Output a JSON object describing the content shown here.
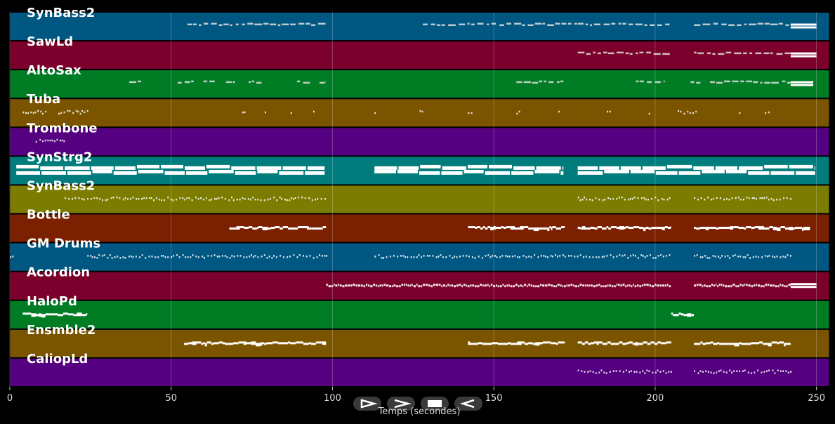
{
  "chart_data": {
    "type": "piano-roll",
    "xlabel": "Temps (secondes)",
    "xlim": [
      0,
      254
    ],
    "xticks": [
      0,
      50,
      100,
      150,
      200,
      250
    ],
    "grid": true,
    "tracks": [
      {
        "name": "SynBass2",
        "color": "#005782",
        "segments": [
          [
            55,
            98,
            "sparse"
          ],
          [
            128,
            205,
            "sparse"
          ],
          [
            212,
            242,
            "sparse"
          ],
          [
            242,
            250,
            "block"
          ]
        ]
      },
      {
        "name": "SawLd",
        "color": "#7b002c",
        "segments": [
          [
            176,
            205,
            "sparse"
          ],
          [
            212,
            242,
            "sparse"
          ],
          [
            242,
            250,
            "block"
          ]
        ]
      },
      {
        "name": "AltoSax",
        "color": "#007c24",
        "segments": [
          [
            37,
            41,
            "sparse"
          ],
          [
            52,
            57,
            "sparse"
          ],
          [
            60,
            64,
            "sparse"
          ],
          [
            67,
            70,
            "sparse"
          ],
          [
            74,
            78,
            "sparse"
          ],
          [
            89,
            93,
            "sparse"
          ],
          [
            96,
            98,
            "sparse"
          ],
          [
            157,
            172,
            "sparse"
          ],
          [
            194,
            203,
            "sparse"
          ],
          [
            211,
            214,
            "sparse"
          ],
          [
            217,
            242,
            "sparse"
          ],
          [
            242,
            249,
            "block"
          ]
        ]
      },
      {
        "name": "Tuba",
        "color": "#7b5400",
        "segments": [
          [
            4,
            11,
            "dots"
          ],
          [
            15,
            24,
            "dots"
          ],
          [
            72,
            73,
            "dots"
          ],
          [
            79,
            80,
            "dots"
          ],
          [
            87,
            88,
            "dots"
          ],
          [
            94,
            95,
            "dots"
          ],
          [
            113,
            114,
            "dots"
          ],
          [
            127,
            128,
            "dots"
          ],
          [
            142,
            143,
            "dots"
          ],
          [
            157,
            158,
            "dots"
          ],
          [
            170,
            171,
            "dots"
          ],
          [
            185,
            186,
            "dots"
          ],
          [
            198,
            199,
            "dots"
          ],
          [
            207,
            213,
            "dots"
          ],
          [
            226,
            227,
            "dots"
          ],
          [
            234,
            235,
            "dots"
          ]
        ]
      },
      {
        "name": "Trombone",
        "color": "#550080",
        "segments": [
          [
            8,
            17,
            "dots"
          ]
        ]
      },
      {
        "name": "SynStrg2",
        "color": "#007c7c",
        "segments": [
          [
            2,
            98,
            "big"
          ],
          [
            113,
            172,
            "big"
          ],
          [
            176,
            250,
            "big"
          ]
        ]
      },
      {
        "name": "SynBass2",
        "color": "#7b7c00",
        "segments": [
          [
            17,
            98,
            "dots"
          ],
          [
            176,
            205,
            "dots"
          ],
          [
            212,
            242,
            "dots"
          ]
        ]
      },
      {
        "name": "Bottle",
        "color": "#7b2000",
        "segments": [
          [
            68,
            98,
            "line"
          ],
          [
            142,
            172,
            "line"
          ],
          [
            176,
            205,
            "line"
          ],
          [
            212,
            248,
            "line"
          ]
        ]
      },
      {
        "name": "GM Drums",
        "color": "#005782",
        "segments": [
          [
            0,
            1,
            "dots"
          ],
          [
            24,
            98,
            "dots"
          ],
          [
            113,
            205,
            "dots"
          ],
          [
            212,
            242,
            "dots"
          ]
        ]
      },
      {
        "name": "Acordion",
        "color": "#7b002c",
        "segments": [
          [
            98,
            205,
            "dense"
          ],
          [
            212,
            242,
            "dense"
          ],
          [
            242,
            250,
            "block"
          ]
        ]
      },
      {
        "name": "HaloPd",
        "color": "#007c24",
        "segments": [
          [
            4,
            24,
            "line"
          ],
          [
            205,
            212,
            "line"
          ]
        ]
      },
      {
        "name": "Ensmble2",
        "color": "#7b5400",
        "segments": [
          [
            54,
            98,
            "line"
          ],
          [
            142,
            172,
            "line"
          ],
          [
            176,
            205,
            "line"
          ],
          [
            212,
            242,
            "line"
          ]
        ]
      },
      {
        "name": "CaliopLd",
        "color": "#550080",
        "segments": [
          [
            176,
            205,
            "dots"
          ],
          [
            212,
            242,
            "dots"
          ]
        ]
      }
    ]
  },
  "controls": [
    {
      "name": "play-button",
      "icon": "play-icon"
    },
    {
      "name": "fast-forward-button",
      "icon": "fast-forward-icon"
    },
    {
      "name": "stop-button",
      "icon": "stop-icon"
    },
    {
      "name": "rewind-button",
      "icon": "rewind-icon"
    }
  ]
}
